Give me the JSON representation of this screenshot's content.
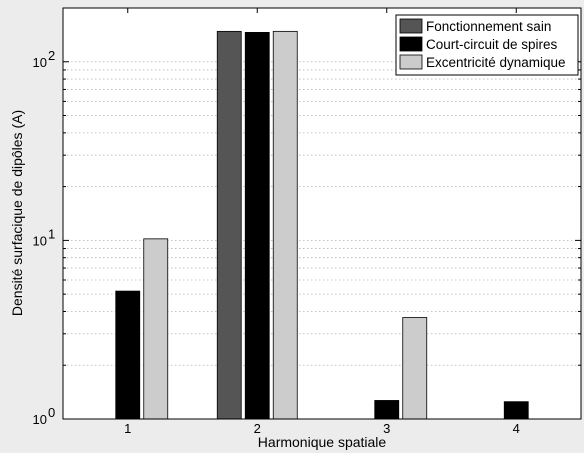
{
  "chart_data": {
    "type": "bar",
    "scale": "log",
    "grid": "y-major-and-minor",
    "legend_position": "top-right",
    "categories": [
      "1",
      "2",
      "3",
      "4"
    ],
    "xlabel": "Harmonique spatiale",
    "ylabel": "Densité surfacique de dipôles (A)",
    "ylim": [
      1,
      200
    ],
    "yticks": [
      {
        "value": 1,
        "base": "10",
        "exp": "0"
      },
      {
        "value": 10,
        "base": "10",
        "exp": "1"
      },
      {
        "value": 100,
        "base": "10",
        "exp": "2"
      }
    ],
    "series": [
      {
        "name": "Fonctionnement sain",
        "color": "#555555",
        "values": [
          null,
          148,
          null,
          null
        ]
      },
      {
        "name": "Court-circuit de spires",
        "color": "#000000",
        "values": [
          5.2,
          146,
          1.27,
          1.25
        ]
      },
      {
        "name": "Excentricité dynamique",
        "color": "#cccccc",
        "values": [
          10.2,
          148,
          3.7,
          null
        ]
      }
    ]
  }
}
